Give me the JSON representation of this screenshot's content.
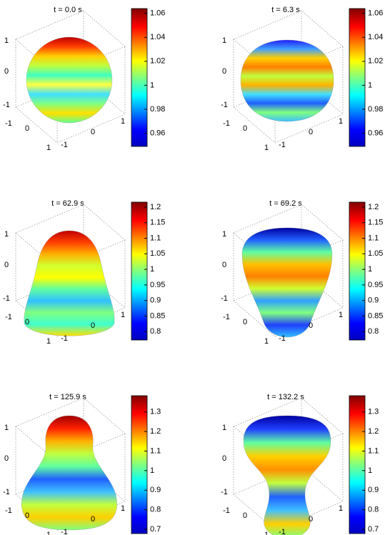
{
  "chart_data": [
    {
      "type": "surface",
      "title": "t = 0.0 s",
      "clim": [
        0.949,
        1.064
      ],
      "cticks": [
        1.06,
        1.04,
        1.02,
        1,
        0.98,
        0.96
      ],
      "xticks": [
        -1,
        0,
        1
      ],
      "yticks": [
        -1,
        0,
        1
      ],
      "zticks": [
        -1,
        0,
        1
      ]
    },
    {
      "type": "surface",
      "title": "t = 6.3 s",
      "clim": [
        0.949,
        1.064
      ],
      "cticks": [
        1.06,
        1.04,
        1.02,
        1,
        0.98,
        0.96
      ],
      "xticks": [
        -1,
        0,
        1
      ],
      "yticks": [
        -1,
        0,
        1
      ],
      "zticks": [
        -1,
        0,
        1
      ]
    },
    {
      "type": "surface",
      "title": "t = 62.9 s",
      "clim": [
        0.773,
        1.216
      ],
      "cticks": [
        1.2,
        1.15,
        1.1,
        1.05,
        1,
        0.95,
        0.9,
        0.85,
        0.8
      ],
      "xticks": [
        -1,
        0,
        1
      ],
      "yticks": [
        -1,
        0,
        1
      ],
      "zticks": [
        -1,
        0,
        1
      ]
    },
    {
      "type": "surface",
      "title": "t = 69.2 s",
      "clim": [
        0.773,
        1.216
      ],
      "cticks": [
        1.2,
        1.15,
        1.1,
        1.05,
        1,
        0.95,
        0.9,
        0.85,
        0.8
      ],
      "xticks": [
        -1,
        0,
        1
      ],
      "yticks": [
        -1,
        0,
        1
      ],
      "zticks": [
        -1,
        0,
        1
      ]
    },
    {
      "type": "surface",
      "title": "t = 125.9 s",
      "clim": [
        0.678,
        1.383
      ],
      "cticks": [
        1.3,
        1.2,
        1.1,
        1,
        0.9,
        0.8,
        0.7
      ],
      "xticks": [
        -1,
        0,
        1
      ],
      "yticks": [
        -1,
        0,
        1
      ],
      "zticks": [
        -1,
        0,
        1
      ]
    },
    {
      "type": "surface",
      "title": "t = 132.2 s",
      "clim": [
        0.678,
        1.383
      ],
      "cticks": [
        1.3,
        1.2,
        1.1,
        1,
        0.9,
        0.8,
        0.7
      ],
      "xticks": [
        -1,
        0,
        1
      ],
      "yticks": [
        -1,
        0,
        1
      ],
      "zticks": [
        -1,
        0,
        1
      ]
    }
  ]
}
